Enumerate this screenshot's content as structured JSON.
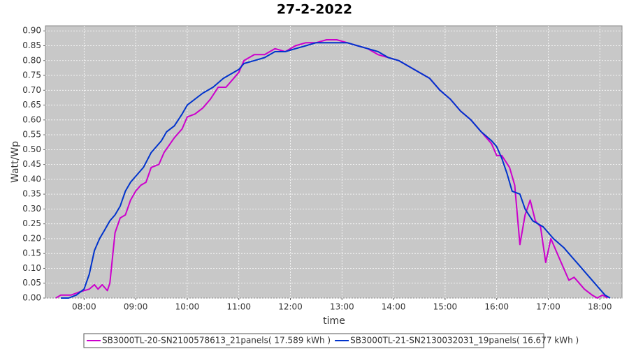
{
  "chart_data": {
    "type": "line",
    "title": "27-2-2022",
    "xlabel": "time",
    "ylabel": "Watt/Wp",
    "xlim": [
      7.25,
      18.43
    ],
    "ylim": [
      0,
      0.917
    ],
    "grid": true,
    "legend": "bottom",
    "xticks": [
      {
        "value": 8,
        "label": "08:00"
      },
      {
        "value": 9,
        "label": "09:00"
      },
      {
        "value": 10,
        "label": "10:00"
      },
      {
        "value": 11,
        "label": "11:00"
      },
      {
        "value": 12,
        "label": "12:00"
      },
      {
        "value": 13,
        "label": "13:00"
      },
      {
        "value": 14,
        "label": "14:00"
      },
      {
        "value": 15,
        "label": "15:00"
      },
      {
        "value": 16,
        "label": "16:00"
      },
      {
        "value": 17,
        "label": "17:00"
      },
      {
        "value": 18,
        "label": "18:00"
      }
    ],
    "yticks": [
      {
        "value": 0,
        "label": "0.00"
      },
      {
        "value": 0.05,
        "label": "0.05"
      },
      {
        "value": 0.1,
        "label": "0.10"
      },
      {
        "value": 0.15,
        "label": "0.15"
      },
      {
        "value": 0.2,
        "label": "0.20"
      },
      {
        "value": 0.25,
        "label": "0.25"
      },
      {
        "value": 0.3,
        "label": "0.30"
      },
      {
        "value": 0.35,
        "label": "0.35"
      },
      {
        "value": 0.4,
        "label": "0.40"
      },
      {
        "value": 0.45,
        "label": "0.45"
      },
      {
        "value": 0.5,
        "label": "0.50"
      },
      {
        "value": 0.55,
        "label": "0.55"
      },
      {
        "value": 0.6,
        "label": "0.60"
      },
      {
        "value": 0.65,
        "label": "0.65"
      },
      {
        "value": 0.7,
        "label": "0.70"
      },
      {
        "value": 0.75,
        "label": "0.75"
      },
      {
        "value": 0.8,
        "label": "0.80"
      },
      {
        "value": 0.85,
        "label": "0.85"
      },
      {
        "value": 0.9,
        "label": "0.90"
      }
    ],
    "series": [
      {
        "name": "SB3000TL-20-SN2100578613_21panels( 17.589 kWh )",
        "color": "#cc00cc",
        "x": [
          7.45,
          7.55,
          7.75,
          7.9,
          8.0,
          8.1,
          8.2,
          8.27,
          8.35,
          8.45,
          8.5,
          8.6,
          8.7,
          8.8,
          8.9,
          9.0,
          9.1,
          9.2,
          9.3,
          9.45,
          9.55,
          9.75,
          9.9,
          10.0,
          10.15,
          10.3,
          10.45,
          10.6,
          10.75,
          10.9,
          11.0,
          11.1,
          11.3,
          11.5,
          11.7,
          11.9,
          12.1,
          12.3,
          12.5,
          12.7,
          12.9,
          13.1,
          13.3,
          13.5,
          13.7,
          13.9,
          14.1,
          14.3,
          14.5,
          14.7,
          14.9,
          15.1,
          15.3,
          15.5,
          15.7,
          15.9,
          16.0,
          16.1,
          16.25,
          16.35,
          16.45,
          16.55,
          16.65,
          16.75,
          16.85,
          16.95,
          17.05,
          17.2,
          17.3,
          17.4,
          17.5,
          17.6,
          17.7,
          17.85,
          17.95,
          18.05,
          18.15
        ],
        "values": [
          0.0,
          0.01,
          0.01,
          0.02,
          0.025,
          0.03,
          0.045,
          0.03,
          0.045,
          0.025,
          0.05,
          0.22,
          0.27,
          0.28,
          0.33,
          0.36,
          0.38,
          0.39,
          0.44,
          0.45,
          0.49,
          0.54,
          0.57,
          0.61,
          0.62,
          0.64,
          0.67,
          0.71,
          0.71,
          0.74,
          0.76,
          0.8,
          0.82,
          0.82,
          0.84,
          0.83,
          0.85,
          0.86,
          0.86,
          0.87,
          0.87,
          0.86,
          0.85,
          0.84,
          0.82,
          0.81,
          0.8,
          0.78,
          0.76,
          0.74,
          0.7,
          0.67,
          0.63,
          0.6,
          0.56,
          0.52,
          0.48,
          0.48,
          0.44,
          0.38,
          0.18,
          0.28,
          0.33,
          0.26,
          0.24,
          0.12,
          0.2,
          0.14,
          0.1,
          0.06,
          0.07,
          0.05,
          0.03,
          0.01,
          0.0,
          0.01,
          0.0
        ]
      },
      {
        "name": "SB3000TL-21-SN2130032031_19panels( 16.677 kWh )",
        "color": "#0033cc",
        "x": [
          7.55,
          7.7,
          7.85,
          8.0,
          8.1,
          8.2,
          8.3,
          8.4,
          8.5,
          8.6,
          8.7,
          8.8,
          8.9,
          9.0,
          9.15,
          9.3,
          9.5,
          9.6,
          9.75,
          9.9,
          10.0,
          10.15,
          10.3,
          10.5,
          10.7,
          10.9,
          11.0,
          11.1,
          11.3,
          11.5,
          11.7,
          11.9,
          12.1,
          12.3,
          12.5,
          12.7,
          12.9,
          13.1,
          13.3,
          13.5,
          13.7,
          13.9,
          14.1,
          14.3,
          14.5,
          14.7,
          14.9,
          15.1,
          15.3,
          15.5,
          15.7,
          15.9,
          16.0,
          16.1,
          16.2,
          16.3,
          16.45,
          16.55,
          16.7,
          16.9,
          17.1,
          17.3,
          17.45,
          17.6,
          17.8,
          17.95,
          18.1,
          18.2
        ],
        "values": [
          0.0,
          0.0,
          0.01,
          0.03,
          0.08,
          0.16,
          0.2,
          0.23,
          0.26,
          0.28,
          0.31,
          0.36,
          0.39,
          0.41,
          0.44,
          0.49,
          0.53,
          0.56,
          0.58,
          0.62,
          0.65,
          0.67,
          0.69,
          0.71,
          0.74,
          0.76,
          0.77,
          0.79,
          0.8,
          0.81,
          0.83,
          0.83,
          0.84,
          0.85,
          0.86,
          0.86,
          0.86,
          0.86,
          0.85,
          0.84,
          0.83,
          0.81,
          0.8,
          0.78,
          0.76,
          0.74,
          0.7,
          0.67,
          0.63,
          0.6,
          0.56,
          0.53,
          0.51,
          0.47,
          0.42,
          0.36,
          0.35,
          0.3,
          0.26,
          0.24,
          0.2,
          0.17,
          0.14,
          0.11,
          0.07,
          0.04,
          0.01,
          0.0
        ]
      }
    ]
  }
}
